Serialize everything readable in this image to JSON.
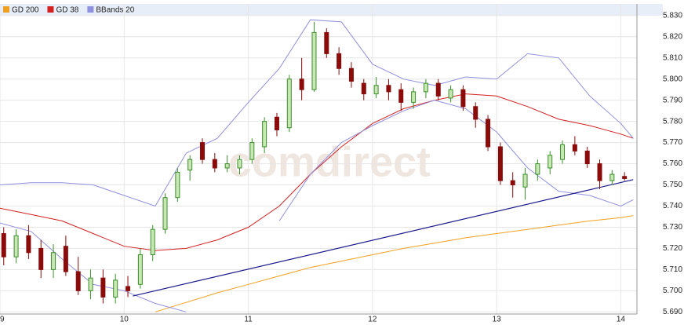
{
  "chart_data": {
    "type": "candlestick",
    "watermark": "comdirect",
    "xlim": [
      9.0,
      14.13
    ],
    "xticks": [
      {
        "value": 9,
        "label": "09"
      },
      10,
      11,
      12,
      13,
      14
    ],
    "ylim": [
      5.689,
      5.8355
    ],
    "yticks": [
      {
        "value": 5.69,
        "label": "5.690"
      },
      {
        "value": 5.7,
        "label": "5.700"
      },
      {
        "value": 5.71,
        "label": "5.710"
      },
      {
        "value": 5.72,
        "label": "5.720"
      },
      {
        "value": 5.73,
        "label": "5.730"
      },
      {
        "value": 5.74,
        "label": "5.740"
      },
      {
        "value": 5.75,
        "label": "5.750"
      },
      {
        "value": 5.76,
        "label": "5.760"
      },
      {
        "value": 5.77,
        "label": "5.770"
      },
      {
        "value": 5.78,
        "label": "5.780"
      },
      {
        "value": 5.79,
        "label": "5.790"
      },
      {
        "value": 5.8,
        "label": "5.800"
      },
      {
        "value": 5.81,
        "label": "5.810"
      },
      {
        "value": 5.82,
        "label": "5.820"
      },
      {
        "value": 5.83,
        "label": "5.830"
      }
    ],
    "grid": true,
    "up_color": "#3a8f2a",
    "up_fill": "#c9e7b5",
    "down_color": "#8b0a0a",
    "candles": {
      "x": [
        9.03,
        9.13,
        9.23,
        9.33,
        9.43,
        9.53,
        9.63,
        9.73,
        9.83,
        9.93,
        10.03,
        10.13,
        10.23,
        10.33,
        10.43,
        10.53,
        10.63,
        10.73,
        10.83,
        10.93,
        11.03,
        11.13,
        11.23,
        11.33,
        11.43,
        11.53,
        11.63,
        11.73,
        11.83,
        11.93,
        12.03,
        12.13,
        12.23,
        12.33,
        12.43,
        12.53,
        12.63,
        12.73,
        12.83,
        12.93,
        13.03,
        13.13,
        13.23,
        13.33,
        13.43,
        13.53,
        13.63,
        13.73,
        13.83,
        13.93,
        14.03
      ],
      "open": [
        5.727,
        5.716,
        5.726,
        5.72,
        5.71,
        5.721,
        5.709,
        5.7,
        5.706,
        5.697,
        5.702,
        5.703,
        5.717,
        5.729,
        5.744,
        5.757,
        5.77,
        5.762,
        5.758,
        5.758,
        5.762,
        5.768,
        5.782,
        5.777,
        5.8,
        5.795,
        5.822,
        5.812,
        5.805,
        5.798,
        5.793,
        5.797,
        5.795,
        5.789,
        5.794,
        5.798,
        5.791,
        5.795,
        5.787,
        5.781,
        5.768,
        5.752,
        5.749,
        5.755,
        5.758,
        5.762,
        5.769,
        5.766,
        5.76,
        5.752,
        5.754
      ],
      "high": [
        5.73,
        5.729,
        5.731,
        5.724,
        5.722,
        5.726,
        5.716,
        5.71,
        5.71,
        5.708,
        5.707,
        5.72,
        5.731,
        5.746,
        5.758,
        5.764,
        5.772,
        5.765,
        5.764,
        5.764,
        5.772,
        5.782,
        5.784,
        5.802,
        5.81,
        5.827,
        5.824,
        5.815,
        5.808,
        5.8,
        5.801,
        5.8,
        5.798,
        5.796,
        5.8,
        5.8,
        5.797,
        5.797,
        5.789,
        5.783,
        5.77,
        5.756,
        5.758,
        5.762,
        5.766,
        5.771,
        5.773,
        5.768,
        5.762,
        5.757,
        5.756
      ],
      "low": [
        5.712,
        5.713,
        5.715,
        5.706,
        5.706,
        5.707,
        5.698,
        5.696,
        5.694,
        5.694,
        5.697,
        5.701,
        5.714,
        5.727,
        5.742,
        5.752,
        5.76,
        5.756,
        5.756,
        5.755,
        5.76,
        5.765,
        5.773,
        5.775,
        5.79,
        5.794,
        5.81,
        5.802,
        5.796,
        5.79,
        5.791,
        5.79,
        5.785,
        5.786,
        5.791,
        5.79,
        5.789,
        5.785,
        5.777,
        5.766,
        5.75,
        5.744,
        5.743,
        5.752,
        5.755,
        5.76,
        5.764,
        5.758,
        5.748,
        5.75,
        5.752
      ],
      "close": [
        5.716,
        5.726,
        5.718,
        5.71,
        5.718,
        5.709,
        5.7,
        5.706,
        5.697,
        5.705,
        5.7,
        5.717,
        5.729,
        5.744,
        5.756,
        5.762,
        5.762,
        5.758,
        5.76,
        5.762,
        5.77,
        5.78,
        5.776,
        5.8,
        5.795,
        5.822,
        5.812,
        5.805,
        5.799,
        5.793,
        5.797,
        5.794,
        5.789,
        5.794,
        5.798,
        5.792,
        5.795,
        5.787,
        5.781,
        5.768,
        5.752,
        5.75,
        5.755,
        5.76,
        5.764,
        5.769,
        5.766,
        5.76,
        5.752,
        5.755,
        5.753
      ]
    },
    "x": [
      9.0,
      9.25,
      9.5,
      9.75,
      10.0,
      10.25,
      10.5,
      10.75,
      11.0,
      11.25,
      11.5,
      11.75,
      12.0,
      12.25,
      12.5,
      12.75,
      13.0,
      13.25,
      13.5,
      13.75,
      14.0,
      14.1
    ],
    "series": [
      {
        "name": "GD 200",
        "color": "#f0a020",
        "values": [
          null,
          null,
          null,
          null,
          null,
          5.69,
          5.6945,
          5.699,
          5.703,
          5.707,
          5.711,
          5.714,
          5.717,
          5.72,
          5.7225,
          5.725,
          5.727,
          5.729,
          5.731,
          5.733,
          5.7345,
          5.7355
        ]
      },
      {
        "name": "GD 38",
        "color": "#d42020",
        "values": [
          5.739,
          5.736,
          5.733,
          5.727,
          5.721,
          5.719,
          5.72,
          5.724,
          5.73,
          5.74,
          5.755,
          5.768,
          5.779,
          5.786,
          5.79,
          5.793,
          5.792,
          5.787,
          5.781,
          5.778,
          5.774,
          5.772
        ]
      },
      {
        "name": "BBands 20",
        "color": "#9090e0",
        "values": [
          5.75,
          5.751,
          5.751,
          5.75,
          5.745,
          5.74,
          5.765,
          5.772,
          5.789,
          5.805,
          5.828,
          5.827,
          5.807,
          5.8,
          5.797,
          5.801,
          5.8,
          5.812,
          5.81,
          5.792,
          5.779,
          5.772
        ],
        "lower": [
          5.732,
          5.728,
          5.715,
          5.703,
          5.7,
          5.694,
          5.69,
          null,
          null,
          5.733,
          5.755,
          5.77,
          5.778,
          5.785,
          5.79,
          5.786,
          5.775,
          5.758,
          5.747,
          5.745,
          5.74,
          5.743
        ]
      }
    ],
    "trendline": {
      "color": "#1a1a8c",
      "x": [
        10.07,
        14.1
      ],
      "y": [
        5.6975,
        5.7525
      ]
    }
  }
}
